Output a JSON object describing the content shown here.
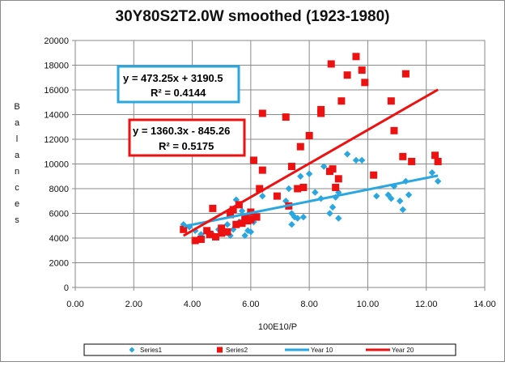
{
  "chart_data": {
    "type": "scatter",
    "title": "30Y80S2T2.0W smoothed (1923-1980)",
    "xlabel": "100E10/P",
    "ylabel": "Balances",
    "xlim": [
      0,
      14
    ],
    "ylim": [
      0,
      20000
    ],
    "x_ticks": [
      "0.00",
      "2.00",
      "4.00",
      "6.00",
      "8.00",
      "10.00",
      "12.00",
      "14.00"
    ],
    "y_ticks": [
      "0",
      "2000",
      "4000",
      "6000",
      "8000",
      "10000",
      "12000",
      "14000",
      "16000",
      "18000",
      "20000"
    ],
    "grid": true,
    "legend_position": "bottom",
    "series": [
      {
        "name": "Series1",
        "marker": "diamond",
        "color": "#2aa7e0",
        "points": [
          [
            3.7,
            5100
          ],
          [
            3.9,
            4900
          ],
          [
            4.1,
            4600
          ],
          [
            4.3,
            4300
          ],
          [
            4.5,
            4600
          ],
          [
            4.7,
            4300
          ],
          [
            4.9,
            4700
          ],
          [
            5.0,
            4500
          ],
          [
            5.1,
            4400
          ],
          [
            5.2,
            5100
          ],
          [
            5.3,
            4200
          ],
          [
            5.4,
            4700
          ],
          [
            5.5,
            7100
          ],
          [
            5.6,
            5300
          ],
          [
            5.7,
            6200
          ],
          [
            5.8,
            4200
          ],
          [
            5.9,
            4600
          ],
          [
            6.0,
            4500
          ],
          [
            6.1,
            5300
          ],
          [
            6.2,
            5800
          ],
          [
            6.4,
            7400
          ],
          [
            7.2,
            7000
          ],
          [
            7.3,
            8000
          ],
          [
            7.4,
            6000
          ],
          [
            7.4,
            5100
          ],
          [
            7.5,
            5700
          ],
          [
            7.6,
            5600
          ],
          [
            7.7,
            8000
          ],
          [
            7.7,
            9000
          ],
          [
            7.8,
            5700
          ],
          [
            8.0,
            9200
          ],
          [
            8.2,
            7700
          ],
          [
            8.4,
            7200
          ],
          [
            8.5,
            9800
          ],
          [
            8.7,
            6000
          ],
          [
            8.8,
            6500
          ],
          [
            8.9,
            7300
          ],
          [
            9.0,
            7700
          ],
          [
            9.0,
            5600
          ],
          [
            9.3,
            10800
          ],
          [
            9.6,
            10300
          ],
          [
            9.8,
            10300
          ],
          [
            10.3,
            7400
          ],
          [
            10.7,
            7500
          ],
          [
            10.8,
            7200
          ],
          [
            10.9,
            8200
          ],
          [
            11.1,
            7000
          ],
          [
            11.2,
            6300
          ],
          [
            11.3,
            8600
          ],
          [
            11.4,
            7500
          ],
          [
            12.2,
            9300
          ],
          [
            12.4,
            8600
          ]
        ]
      },
      {
        "name": "Series2",
        "marker": "square",
        "color": "#ee1111",
        "points": [
          [
            3.7,
            4700
          ],
          [
            4.1,
            3800
          ],
          [
            4.3,
            3900
          ],
          [
            4.5,
            4600
          ],
          [
            4.6,
            4300
          ],
          [
            4.7,
            6400
          ],
          [
            4.8,
            4100
          ],
          [
            5.0,
            4400
          ],
          [
            5.0,
            4800
          ],
          [
            5.2,
            4500
          ],
          [
            5.3,
            5900
          ],
          [
            5.4,
            6300
          ],
          [
            5.5,
            5100
          ],
          [
            5.6,
            6700
          ],
          [
            5.7,
            5200
          ],
          [
            5.8,
            5600
          ],
          [
            5.9,
            5400
          ],
          [
            6.0,
            6100
          ],
          [
            6.0,
            5500
          ],
          [
            6.1,
            10300
          ],
          [
            6.2,
            5700
          ],
          [
            6.3,
            8000
          ],
          [
            6.4,
            9500
          ],
          [
            6.4,
            14100
          ],
          [
            6.9,
            7400
          ],
          [
            7.2,
            13800
          ],
          [
            7.3,
            6600
          ],
          [
            7.4,
            9800
          ],
          [
            7.6,
            8000
          ],
          [
            7.7,
            11400
          ],
          [
            7.8,
            8100
          ],
          [
            8.0,
            12300
          ],
          [
            8.4,
            14400
          ],
          [
            8.4,
            14100
          ],
          [
            8.7,
            9400
          ],
          [
            8.75,
            18100
          ],
          [
            8.8,
            9600
          ],
          [
            8.9,
            8100
          ],
          [
            9.0,
            8800
          ],
          [
            9.1,
            15100
          ],
          [
            9.3,
            17200
          ],
          [
            9.6,
            18700
          ],
          [
            9.8,
            17600
          ],
          [
            9.9,
            16600
          ],
          [
            10.2,
            9100
          ],
          [
            10.8,
            15100
          ],
          [
            10.9,
            12700
          ],
          [
            11.2,
            10600
          ],
          [
            11.3,
            17300
          ],
          [
            11.5,
            10200
          ],
          [
            12.3,
            10700
          ],
          [
            12.4,
            10200
          ]
        ]
      }
    ],
    "trendlines": [
      {
        "name": "Year 10",
        "series": "Series1",
        "color": "#2aa7e0",
        "slope": 473.25,
        "intercept": 3190.5,
        "x_range": [
          3.7,
          12.4
        ],
        "equation": "y = 473.25x + 3190.5",
        "r2": "R² = 0.4144"
      },
      {
        "name": "Year 20",
        "series": "Series2",
        "color": "#ee1111",
        "slope": 1360.3,
        "intercept": -845.26,
        "x_range": [
          3.7,
          12.4
        ],
        "equation": "y = 1360.3x - 845.26",
        "r2": "R² = 0.5175"
      }
    ]
  }
}
